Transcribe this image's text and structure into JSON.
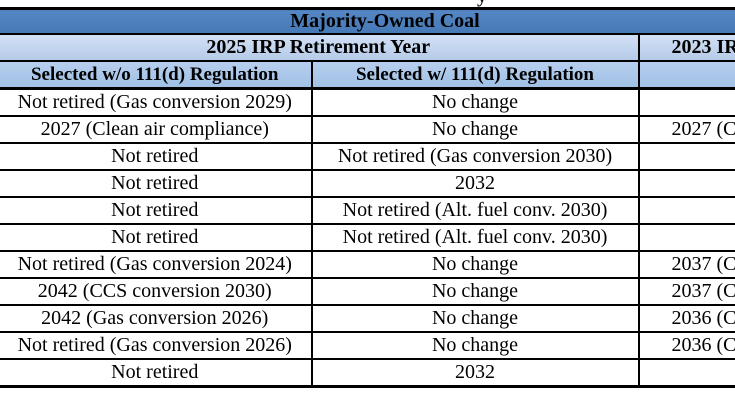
{
  "cropped_title_fragment": "y",
  "table": {
    "title": "Majority-Owned Coal",
    "col_groups": [
      {
        "label": "2025 IRP Retirement Year"
      },
      {
        "label": "2023 IR"
      }
    ],
    "sub_headers": [
      "Selected w/o 111(d) Regulation",
      "Selected w/ 111(d) Regulation",
      ""
    ],
    "rows": [
      [
        "Not retired (Gas conversion 2029)",
        "No change",
        ""
      ],
      [
        "2027 (Clean air compliance)",
        "No change",
        "2027 (C"
      ],
      [
        "Not retired",
        "Not retired (Gas conversion 2030)",
        ""
      ],
      [
        "Not retired",
        "2032",
        ""
      ],
      [
        "Not retired",
        "Not retired (Alt. fuel conv. 2030)",
        ""
      ],
      [
        "Not retired",
        "Not retired (Alt. fuel conv. 2030)",
        ""
      ],
      [
        "Not retired (Gas conversion 2024)",
        "No change",
        "2037 (C"
      ],
      [
        "2042 (CCS conversion 2030)",
        "No change",
        "2037 (C"
      ],
      [
        "2042 (Gas conversion 2026)",
        "No change",
        "2036 (C"
      ],
      [
        "Not retired (Gas conversion 2026)",
        "No change",
        "2036 (C"
      ],
      [
        "Not retired",
        "2032",
        ""
      ]
    ],
    "colors": {
      "title_bg": "#4E81BD",
      "group_header_bg": "#C3D6EE",
      "sub_header_bg": "#ABC8EA",
      "border": "#000000",
      "body_bg": "#FFFFFF",
      "text": "#000000"
    }
  }
}
